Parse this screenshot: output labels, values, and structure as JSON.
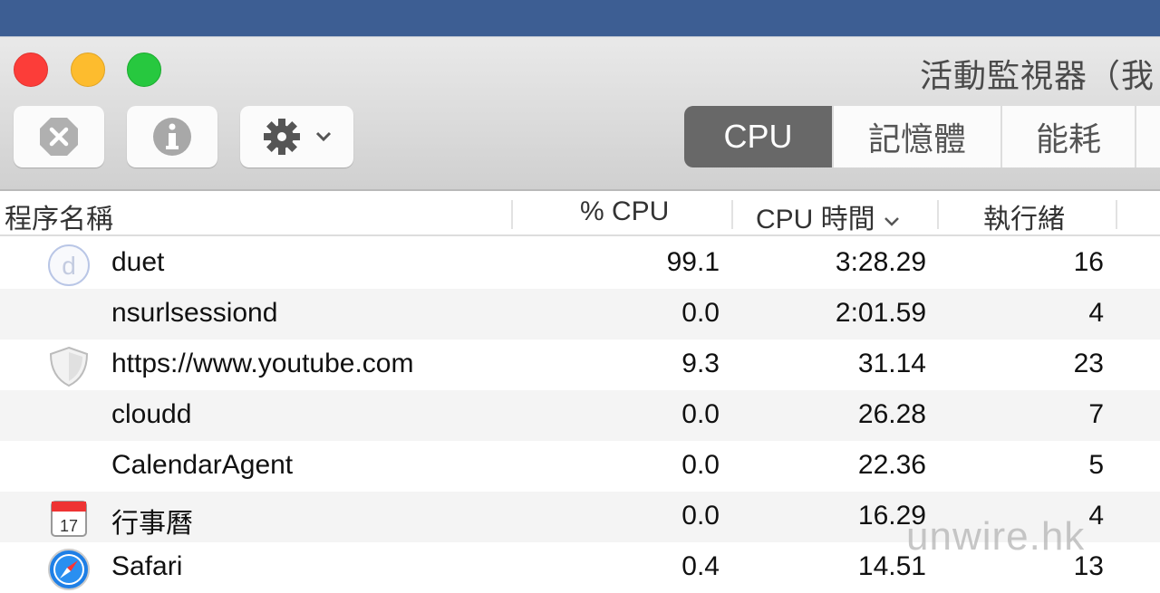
{
  "window": {
    "title": "活動監視器（我"
  },
  "toolbar": {
    "stop_icon": "stop-process-icon",
    "info_icon": "info-icon",
    "gear_icon": "gear-icon"
  },
  "tabs": [
    {
      "label": "CPU",
      "active": true
    },
    {
      "label": "記憶體"
    },
    {
      "label": "能耗"
    }
  ],
  "columns": {
    "name": "程序名稱",
    "cpu": "% CPU",
    "cpu_time": "CPU 時間",
    "threads": "執行緒"
  },
  "rows": [
    {
      "name": "duet",
      "cpu": "99.1",
      "time": "3:28.29",
      "threads": "16",
      "icon": "duet-icon"
    },
    {
      "name": "nsurlsessiond",
      "cpu": "0.0",
      "time": "2:01.59",
      "threads": "4",
      "icon": ""
    },
    {
      "name": "https://www.youtube.com",
      "cpu": "9.3",
      "time": "31.14",
      "threads": "23",
      "icon": "shield-icon"
    },
    {
      "name": "cloudd",
      "cpu": "0.0",
      "time": "26.28",
      "threads": "7",
      "icon": ""
    },
    {
      "name": "CalendarAgent",
      "cpu": "0.0",
      "time": "22.36",
      "threads": "5",
      "icon": ""
    },
    {
      "name": "行事曆",
      "cpu": "0.0",
      "time": "16.29",
      "threads": "4",
      "icon": "calendar-icon"
    },
    {
      "name": "Safari",
      "cpu": "0.4",
      "time": "14.51",
      "threads": "13",
      "icon": "safari-icon"
    }
  ],
  "watermark": "unwire.hk"
}
